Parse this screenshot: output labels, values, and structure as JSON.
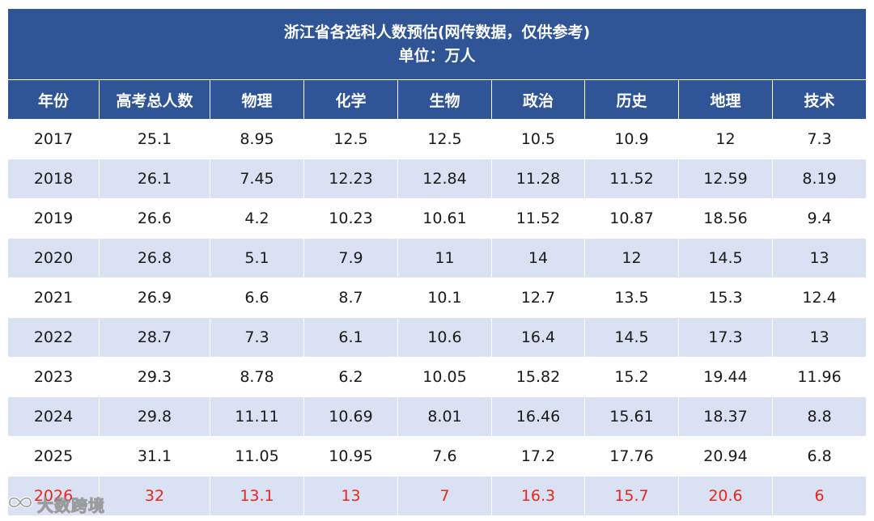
{
  "table": {
    "title_line1": "浙江省各选科人数预估(网传数据，仅供参考)",
    "title_line2": "单位：万人",
    "headers": [
      "年份",
      "高考总人数",
      "物理",
      "化学",
      "生物",
      "政治",
      "历史",
      "地理",
      "技术"
    ],
    "rows": [
      [
        "2017",
        "25.1",
        "8.95",
        "12.5",
        "12.5",
        "10.5",
        "10.9",
        "12",
        "7.3"
      ],
      [
        "2018",
        "26.1",
        "7.45",
        "12.23",
        "12.84",
        "11.28",
        "11.52",
        "12.59",
        "8.19"
      ],
      [
        "2019",
        "26.6",
        "4.2",
        "10.23",
        "10.61",
        "11.52",
        "10.87",
        "18.56",
        "9.4"
      ],
      [
        "2020",
        "26.8",
        "5.1",
        "7.9",
        "11",
        "14",
        "12",
        "14.5",
        "13"
      ],
      [
        "2021",
        "26.9",
        "6.6",
        "8.7",
        "10.1",
        "12.7",
        "13.5",
        "15.3",
        "12.4"
      ],
      [
        "2022",
        "28.7",
        "7.3",
        "6.1",
        "10.6",
        "16.4",
        "14.5",
        "17.3",
        "13"
      ],
      [
        "2023",
        "29.3",
        "8.78",
        "6.2",
        "10.05",
        "15.82",
        "15.2",
        "19.44",
        "11.96"
      ],
      [
        "2024",
        "29.8",
        "11.11",
        "10.69",
        "8.01",
        "16.46",
        "15.61",
        "18.37",
        "8.8"
      ],
      [
        "2025",
        "31.1",
        "11.05",
        "10.95",
        "7.6",
        "17.2",
        "17.76",
        "20.94",
        "6.8"
      ],
      [
        "2026",
        "32",
        "13.1",
        "13",
        "7",
        "16.3",
        "15.7",
        "20.6",
        "6"
      ]
    ]
  },
  "watermark": {
    "text": "大数跨境",
    "logo_icon": "infinity-logo-icon"
  },
  "colors": {
    "header_bg": "#2f5597",
    "stripe_bg": "#dae1f2",
    "highlight_text": "#e8261f"
  }
}
